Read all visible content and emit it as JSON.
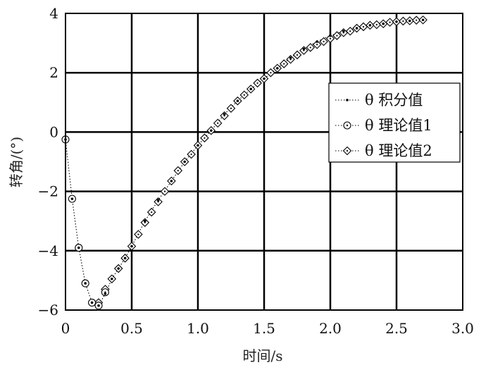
{
  "chart_data": {
    "type": "line",
    "xlabel": "时间/s",
    "ylabel": "转角/(°)",
    "xlim": [
      0,
      3.0
    ],
    "ylim": [
      -6,
      4
    ],
    "xticks": [
      0,
      0.5,
      1.0,
      1.5,
      2.0,
      2.5,
      3.0
    ],
    "xtick_labels": [
      "0",
      "0.5",
      "1.0",
      "1.5",
      "2.0",
      "2.5",
      "3.0"
    ],
    "yticks": [
      -6,
      -4,
      -2,
      0,
      2,
      4
    ],
    "ytick_labels": [
      "−6",
      "−4",
      "−2",
      "0",
      "2",
      "4"
    ],
    "grid": true,
    "legend_position": "right",
    "series": [
      {
        "name": "θ 积分值",
        "marker": "dot",
        "line": "dotted",
        "x": [
          0,
          0.05,
          0.1,
          0.15,
          0.2,
          0.25,
          0.3,
          0.35,
          0.4,
          0.45,
          0.5,
          0.6,
          0.7,
          0.8,
          0.9,
          1.0,
          1.1,
          1.2,
          1.3,
          1.4,
          1.5,
          1.6,
          1.7,
          1.8,
          1.9,
          2.0,
          2.1,
          2.2,
          2.3,
          2.4,
          2.5,
          2.6,
          2.7
        ],
        "y": [
          -0.25,
          -2.25,
          -3.9,
          -5.1,
          -5.75,
          -5.85,
          -5.45,
          -4.95,
          -4.6,
          -4.25,
          -3.85,
          -3.0,
          -2.3,
          -1.65,
          -1.0,
          -0.45,
          0.05,
          0.6,
          1.05,
          1.45,
          1.8,
          2.15,
          2.5,
          2.8,
          3.05,
          3.25,
          3.4,
          3.5,
          3.6,
          3.65,
          3.72,
          3.75,
          3.78
        ]
      },
      {
        "name": "θ 理论值1",
        "marker": "circle",
        "line": "dotted",
        "x": [
          0,
          0.05,
          0.1,
          0.15,
          0.2,
          0.25,
          0.3
        ],
        "y": [
          -0.25,
          -2.25,
          -3.9,
          -5.1,
          -5.75,
          -5.85,
          -5.4
        ]
      },
      {
        "name": "θ 理论值2",
        "marker": "diamond",
        "line": "dotted",
        "x": [
          0.25,
          0.3,
          0.35,
          0.4,
          0.45,
          0.5,
          0.55,
          0.6,
          0.65,
          0.7,
          0.75,
          0.8,
          0.85,
          0.9,
          0.95,
          1.0,
          1.05,
          1.1,
          1.15,
          1.2,
          1.25,
          1.3,
          1.35,
          1.4,
          1.45,
          1.5,
          1.55,
          1.6,
          1.65,
          1.7,
          1.75,
          1.8,
          1.85,
          1.9,
          1.95,
          2.0,
          2.05,
          2.1,
          2.15,
          2.2,
          2.25,
          2.3,
          2.35,
          2.4,
          2.45,
          2.5,
          2.55,
          2.6,
          2.65,
          2.7
        ],
        "y": [
          -5.75,
          -5.3,
          -4.95,
          -4.6,
          -4.25,
          -3.85,
          -3.45,
          -3.05,
          -2.7,
          -2.35,
          -2.0,
          -1.65,
          -1.3,
          -1.0,
          -0.75,
          -0.45,
          -0.2,
          0.05,
          0.3,
          0.55,
          0.8,
          1.05,
          1.25,
          1.45,
          1.65,
          1.8,
          2.0,
          2.15,
          2.3,
          2.45,
          2.6,
          2.75,
          2.85,
          2.95,
          3.05,
          3.15,
          3.25,
          3.35,
          3.4,
          3.5,
          3.55,
          3.6,
          3.62,
          3.65,
          3.7,
          3.72,
          3.74,
          3.75,
          3.77,
          3.78
        ]
      }
    ]
  }
}
